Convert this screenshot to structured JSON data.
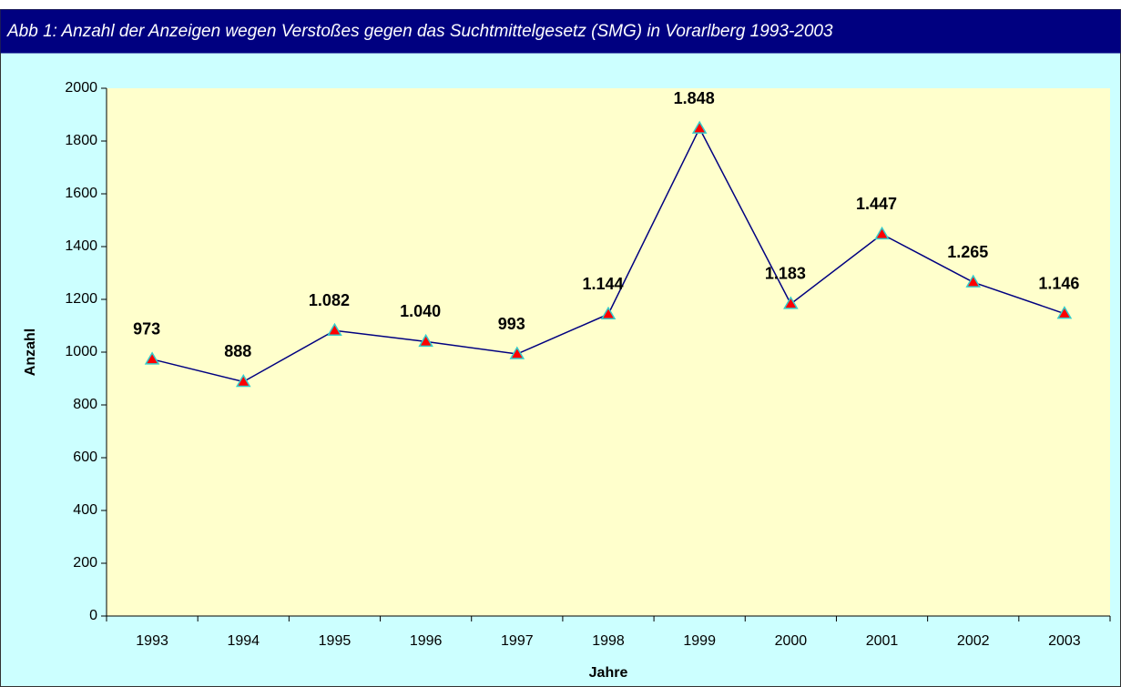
{
  "chart_data": {
    "type": "line",
    "title": "Abb 1: Anzahl der Anzeigen wegen Verstoßes gegen das Suchtmittelgesetz (SMG) in Vorarlberg 1993-2003",
    "x_label": "Jahre",
    "y_label": "Anzahl",
    "categories": [
      "1993",
      "1994",
      "1995",
      "1996",
      "1997",
      "1998",
      "1999",
      "2000",
      "2001",
      "2002",
      "2003"
    ],
    "series": [
      {
        "color": "#000080",
        "marker_color": "#ff0000",
        "values": [
          973,
          888,
          1082,
          1040,
          993,
          1144,
          1848,
          1183,
          1447,
          1265,
          1146
        ],
        "value_labels": [
          "973",
          "888",
          "1.082",
          "1.040",
          "993",
          "1.144",
          "1.848",
          "1.183",
          "1.447",
          "1.265",
          "1.146"
        ]
      }
    ],
    "ylim": [
      0,
      2000
    ],
    "yticks": [
      0,
      200,
      400,
      600,
      800,
      1000,
      1200,
      1400,
      1600,
      1800,
      2000
    ],
    "grid": false
  }
}
